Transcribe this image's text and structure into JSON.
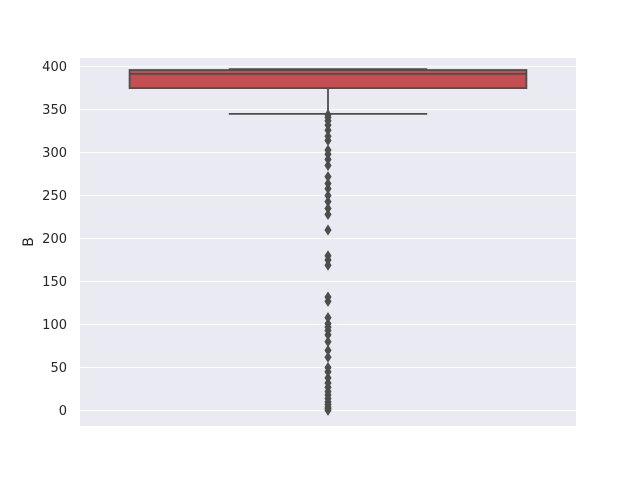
{
  "chart_data": {
    "type": "boxplot",
    "ylabel": "B",
    "xlabel": "",
    "ylim": [
      -18,
      410
    ],
    "yticks": [
      0,
      50,
      100,
      150,
      200,
      250,
      300,
      350,
      400
    ],
    "grid": true,
    "box": {
      "whisker_low": 345,
      "q1": 375,
      "median": 391.5,
      "q3": 396,
      "whisker_high": 397
    },
    "outliers": [
      0.3,
      2,
      4,
      7,
      10,
      14,
      18,
      22,
      27,
      32,
      38,
      45,
      50,
      62,
      70,
      80,
      88,
      93,
      97,
      101,
      108,
      127,
      132,
      169,
      175,
      180,
      210,
      228,
      235,
      243,
      250,
      258,
      264,
      272,
      285,
      292,
      298,
      303,
      314,
      319,
      326,
      332,
      337,
      341,
      344
    ],
    "colors": {
      "box": "#c44e52",
      "line": "#4d4d4d",
      "background": "#eaeaf2",
      "grid": "#ffffff"
    }
  }
}
